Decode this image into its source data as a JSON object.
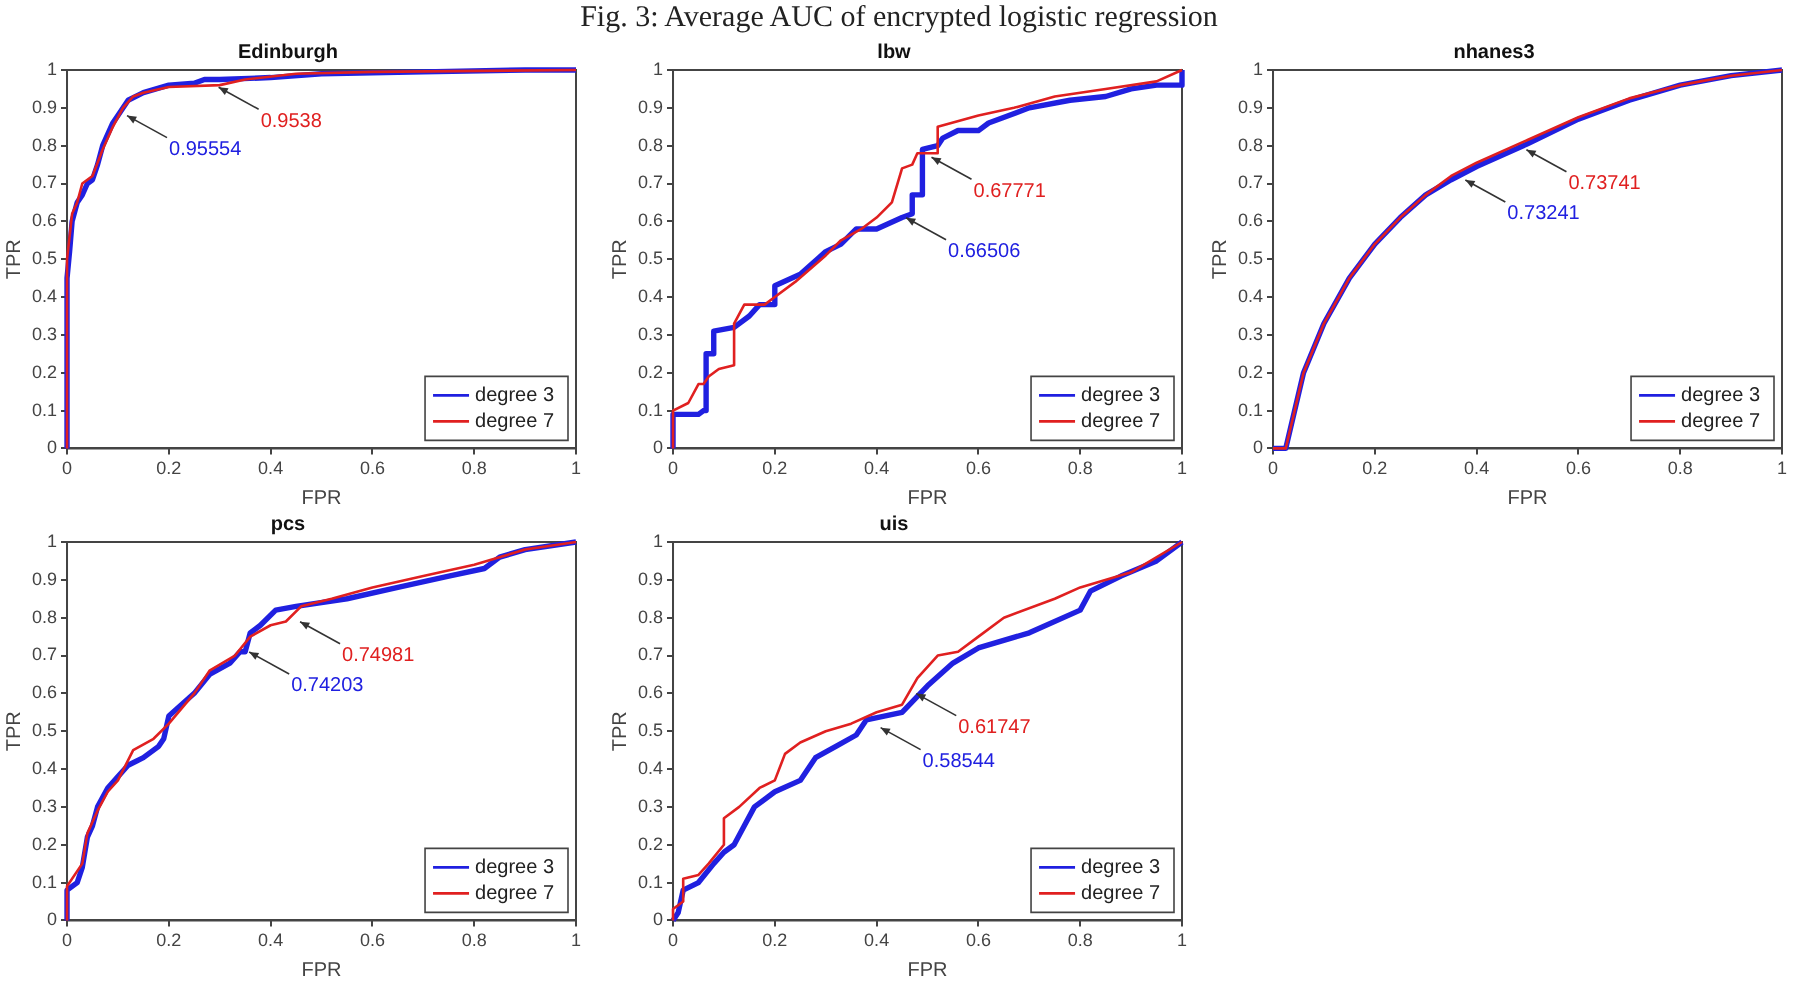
{
  "chart_data": [
    {
      "type": "line",
      "title": "Edinburgh",
      "xlabel": "FPR",
      "ylabel": "TPR",
      "xlim": [
        0,
        1
      ],
      "ylim": [
        0,
        1
      ],
      "xticks": [
        0,
        0.2,
        0.4,
        0.6,
        0.8,
        1
      ],
      "yticks": [
        0,
        0.1,
        0.2,
        0.3,
        0.4,
        0.5,
        0.6,
        0.7,
        0.8,
        0.9,
        1
      ],
      "legend": "bottom right",
      "marker": "none",
      "annotations": [
        "Fig. 3: Average AUC of encrypted logistic regression",
        {
          "text": "0.95554",
          "x": 0.11,
          "y": 0.89
        },
        {
          "text": "0.9538",
          "x": 0.29,
          "y": 0.965
        }
      ],
      "series": [
        {
          "name": "degree 3",
          "color": "#2020e0",
          "x": [
            0,
            0,
            0.005,
            0.01,
            0.02,
            0.03,
            0.04,
            0.05,
            0.06,
            0.07,
            0.09,
            0.1,
            0.12,
            0.15,
            0.2,
            0.25,
            0.27,
            0.3,
            0.4,
            0.5,
            0.7,
            0.9,
            1
          ],
          "values": [
            0,
            0.45,
            0.52,
            0.6,
            0.65,
            0.67,
            0.7,
            0.71,
            0.75,
            0.8,
            0.86,
            0.88,
            0.92,
            0.94,
            0.96,
            0.965,
            0.975,
            0.975,
            0.98,
            0.99,
            0.995,
            1,
            1
          ]
        },
        {
          "name": "degree 7",
          "color": "#e02020",
          "x": [
            0,
            0,
            0.01,
            0.02,
            0.03,
            0.05,
            0.07,
            0.09,
            0.11,
            0.13,
            0.15,
            0.2,
            0.3,
            0.35,
            0.45,
            0.6,
            1
          ],
          "values": [
            0,
            0.5,
            0.62,
            0.65,
            0.7,
            0.72,
            0.79,
            0.85,
            0.9,
            0.93,
            0.94,
            0.955,
            0.96,
            0.975,
            0.99,
            0.995,
            1
          ]
        }
      ]
    },
    {
      "type": "line",
      "title": "lbw",
      "xlabel": "FPR",
      "ylabel": "TPR",
      "xlim": [
        0,
        1
      ],
      "ylim": [
        0,
        1
      ],
      "xticks": [
        0,
        0.2,
        0.4,
        0.6,
        0.8,
        1
      ],
      "yticks": [
        0,
        0.1,
        0.2,
        0.3,
        0.4,
        0.5,
        0.6,
        0.7,
        0.8,
        0.9,
        1
      ],
      "legend": "bottom right",
      "marker": "none",
      "annotations": [
        {
          "text": "0.66506",
          "x": 0.45,
          "y": 0.62
        },
        {
          "text": "0.67771",
          "x": 0.5,
          "y": 0.78
        }
      ],
      "series": [
        {
          "name": "degree 3",
          "color": "#2020e0",
          "x": [
            0,
            0,
            0.05,
            0.06,
            0.065,
            0.065,
            0.08,
            0.08,
            0.12,
            0.15,
            0.17,
            0.2,
            0.2,
            0.25,
            0.3,
            0.33,
            0.36,
            0.4,
            0.45,
            0.47,
            0.47,
            0.49,
            0.49,
            0.52,
            0.53,
            0.56,
            0.6,
            0.62,
            0.7,
            0.78,
            0.85,
            0.9,
            0.95,
            1,
            1
          ],
          "values": [
            0,
            0.09,
            0.09,
            0.1,
            0.1,
            0.25,
            0.25,
            0.31,
            0.32,
            0.35,
            0.38,
            0.38,
            0.43,
            0.46,
            0.52,
            0.54,
            0.58,
            0.58,
            0.61,
            0.62,
            0.67,
            0.67,
            0.79,
            0.8,
            0.82,
            0.84,
            0.84,
            0.86,
            0.9,
            0.92,
            0.93,
            0.95,
            0.96,
            0.96,
            1
          ]
        },
        {
          "name": "degree 7",
          "color": "#e02020",
          "x": [
            0,
            0,
            0.03,
            0.05,
            0.06,
            0.07,
            0.09,
            0.12,
            0.12,
            0.14,
            0.18,
            0.2,
            0.24,
            0.3,
            0.33,
            0.37,
            0.4,
            0.43,
            0.45,
            0.47,
            0.48,
            0.52,
            0.52,
            0.6,
            0.67,
            0.75,
            0.85,
            0.95,
            1
          ],
          "values": [
            0,
            0.1,
            0.12,
            0.17,
            0.17,
            0.19,
            0.21,
            0.22,
            0.33,
            0.38,
            0.38,
            0.4,
            0.44,
            0.51,
            0.55,
            0.58,
            0.61,
            0.65,
            0.74,
            0.75,
            0.78,
            0.78,
            0.85,
            0.88,
            0.9,
            0.93,
            0.95,
            0.97,
            1
          ]
        }
      ]
    },
    {
      "type": "line",
      "title": "nhanes3",
      "xlabel": "FPR",
      "ylabel": "TPR",
      "xlim": [
        0,
        1
      ],
      "ylim": [
        0,
        1
      ],
      "xticks": [
        0,
        0.2,
        0.4,
        0.6,
        0.8,
        1
      ],
      "yticks": [
        0,
        0.1,
        0.2,
        0.3,
        0.4,
        0.5,
        0.6,
        0.7,
        0.8,
        0.9,
        1
      ],
      "legend": "bottom right",
      "marker": "none",
      "annotations": [
        {
          "text": "0.73241",
          "x": 0.37,
          "y": 0.72
        },
        {
          "text": "0.73741",
          "x": 0.49,
          "y": 0.8
        }
      ],
      "series": [
        {
          "name": "degree 3",
          "color": "#2020e0",
          "x": [
            0,
            0.025,
            0.06,
            0.1,
            0.15,
            0.2,
            0.25,
            0.3,
            0.35,
            0.4,
            0.5,
            0.6,
            0.7,
            0.8,
            0.9,
            1
          ],
          "values": [
            0,
            0,
            0.2,
            0.33,
            0.45,
            0.54,
            0.61,
            0.67,
            0.71,
            0.745,
            0.805,
            0.87,
            0.92,
            0.96,
            0.985,
            1
          ]
        },
        {
          "name": "degree 7",
          "color": "#e02020",
          "x": [
            0,
            0.025,
            0.06,
            0.1,
            0.15,
            0.2,
            0.25,
            0.3,
            0.35,
            0.4,
            0.5,
            0.6,
            0.7,
            0.8,
            0.9,
            1
          ],
          "values": [
            0,
            0,
            0.2,
            0.33,
            0.45,
            0.54,
            0.61,
            0.67,
            0.72,
            0.755,
            0.815,
            0.875,
            0.925,
            0.96,
            0.985,
            1
          ]
        }
      ]
    },
    {
      "type": "line",
      "title": "pcs",
      "xlabel": "FPR",
      "ylabel": "TPR",
      "xlim": [
        0,
        1
      ],
      "ylim": [
        0,
        1
      ],
      "xticks": [
        0,
        0.2,
        0.4,
        0.6,
        0.8,
        1
      ],
      "yticks": [
        0,
        0.1,
        0.2,
        0.3,
        0.4,
        0.5,
        0.6,
        0.7,
        0.8,
        0.9,
        1
      ],
      "legend": "bottom right",
      "marker": "none",
      "annotations": [
        {
          "text": "0.74203",
          "x": 0.35,
          "y": 0.72
        },
        {
          "text": "0.74981",
          "x": 0.45,
          "y": 0.8
        }
      ],
      "series": [
        {
          "name": "degree 3",
          "color": "#2020e0",
          "x": [
            0,
            0,
            0.02,
            0.03,
            0.04,
            0.05,
            0.06,
            0.08,
            0.1,
            0.12,
            0.15,
            0.18,
            0.19,
            0.2,
            0.25,
            0.28,
            0.32,
            0.34,
            0.35,
            0.36,
            0.38,
            0.41,
            0.45,
            0.55,
            0.65,
            0.75,
            0.82,
            0.85,
            0.9,
            1
          ],
          "values": [
            0,
            0.08,
            0.1,
            0.14,
            0.22,
            0.25,
            0.3,
            0.35,
            0.38,
            0.41,
            0.43,
            0.46,
            0.48,
            0.54,
            0.6,
            0.65,
            0.68,
            0.71,
            0.71,
            0.76,
            0.78,
            0.82,
            0.83,
            0.85,
            0.88,
            0.91,
            0.93,
            0.96,
            0.98,
            1
          ]
        },
        {
          "name": "degree 7",
          "color": "#e02020",
          "x": [
            0,
            0,
            0.03,
            0.04,
            0.06,
            0.08,
            0.1,
            0.13,
            0.17,
            0.2,
            0.25,
            0.28,
            0.33,
            0.36,
            0.4,
            0.43,
            0.46,
            0.52,
            0.6,
            0.7,
            0.8,
            0.9,
            1
          ],
          "values": [
            0,
            0.09,
            0.15,
            0.23,
            0.29,
            0.34,
            0.37,
            0.45,
            0.48,
            0.52,
            0.6,
            0.66,
            0.7,
            0.75,
            0.78,
            0.79,
            0.83,
            0.85,
            0.88,
            0.91,
            0.94,
            0.98,
            1
          ]
        }
      ]
    },
    {
      "type": "line",
      "title": "uis",
      "xlabel": "FPR",
      "ylabel": "TPR",
      "xlim": [
        0,
        1
      ],
      "ylim": [
        0,
        1
      ],
      "xticks": [
        0,
        0.2,
        0.4,
        0.6,
        0.8,
        1
      ],
      "yticks": [
        0,
        0.1,
        0.2,
        0.3,
        0.4,
        0.5,
        0.6,
        0.7,
        0.8,
        0.9,
        1
      ],
      "legend": "bottom right",
      "marker": "none",
      "annotations": [
        {
          "text": "0.58544",
          "x": 0.4,
          "y": 0.52
        },
        {
          "text": "0.61747",
          "x": 0.47,
          "y": 0.61
        }
      ],
      "series": [
        {
          "name": "degree 3",
          "color": "#2020e0",
          "x": [
            0,
            0.01,
            0.02,
            0.05,
            0.08,
            0.1,
            0.12,
            0.14,
            0.16,
            0.2,
            0.25,
            0.28,
            0.32,
            0.36,
            0.38,
            0.45,
            0.5,
            0.55,
            0.6,
            0.7,
            0.8,
            0.82,
            0.88,
            0.95,
            1
          ],
          "values": [
            0,
            0.02,
            0.08,
            0.1,
            0.15,
            0.18,
            0.2,
            0.25,
            0.3,
            0.34,
            0.37,
            0.43,
            0.46,
            0.49,
            0.53,
            0.55,
            0.62,
            0.68,
            0.72,
            0.76,
            0.82,
            0.87,
            0.91,
            0.95,
            1
          ]
        },
        {
          "name": "degree 7",
          "color": "#e02020",
          "x": [
            0,
            0,
            0.02,
            0.02,
            0.05,
            0.07,
            0.1,
            0.1,
            0.13,
            0.17,
            0.2,
            0.22,
            0.25,
            0.3,
            0.35,
            0.4,
            0.45,
            0.48,
            0.52,
            0.56,
            0.6,
            0.65,
            0.75,
            0.8,
            0.9,
            1
          ],
          "values": [
            0,
            0.03,
            0.05,
            0.11,
            0.12,
            0.15,
            0.2,
            0.27,
            0.3,
            0.35,
            0.37,
            0.44,
            0.47,
            0.5,
            0.52,
            0.55,
            0.57,
            0.64,
            0.7,
            0.71,
            0.75,
            0.8,
            0.85,
            0.88,
            0.92,
            1
          ]
        }
      ]
    }
  ]
}
